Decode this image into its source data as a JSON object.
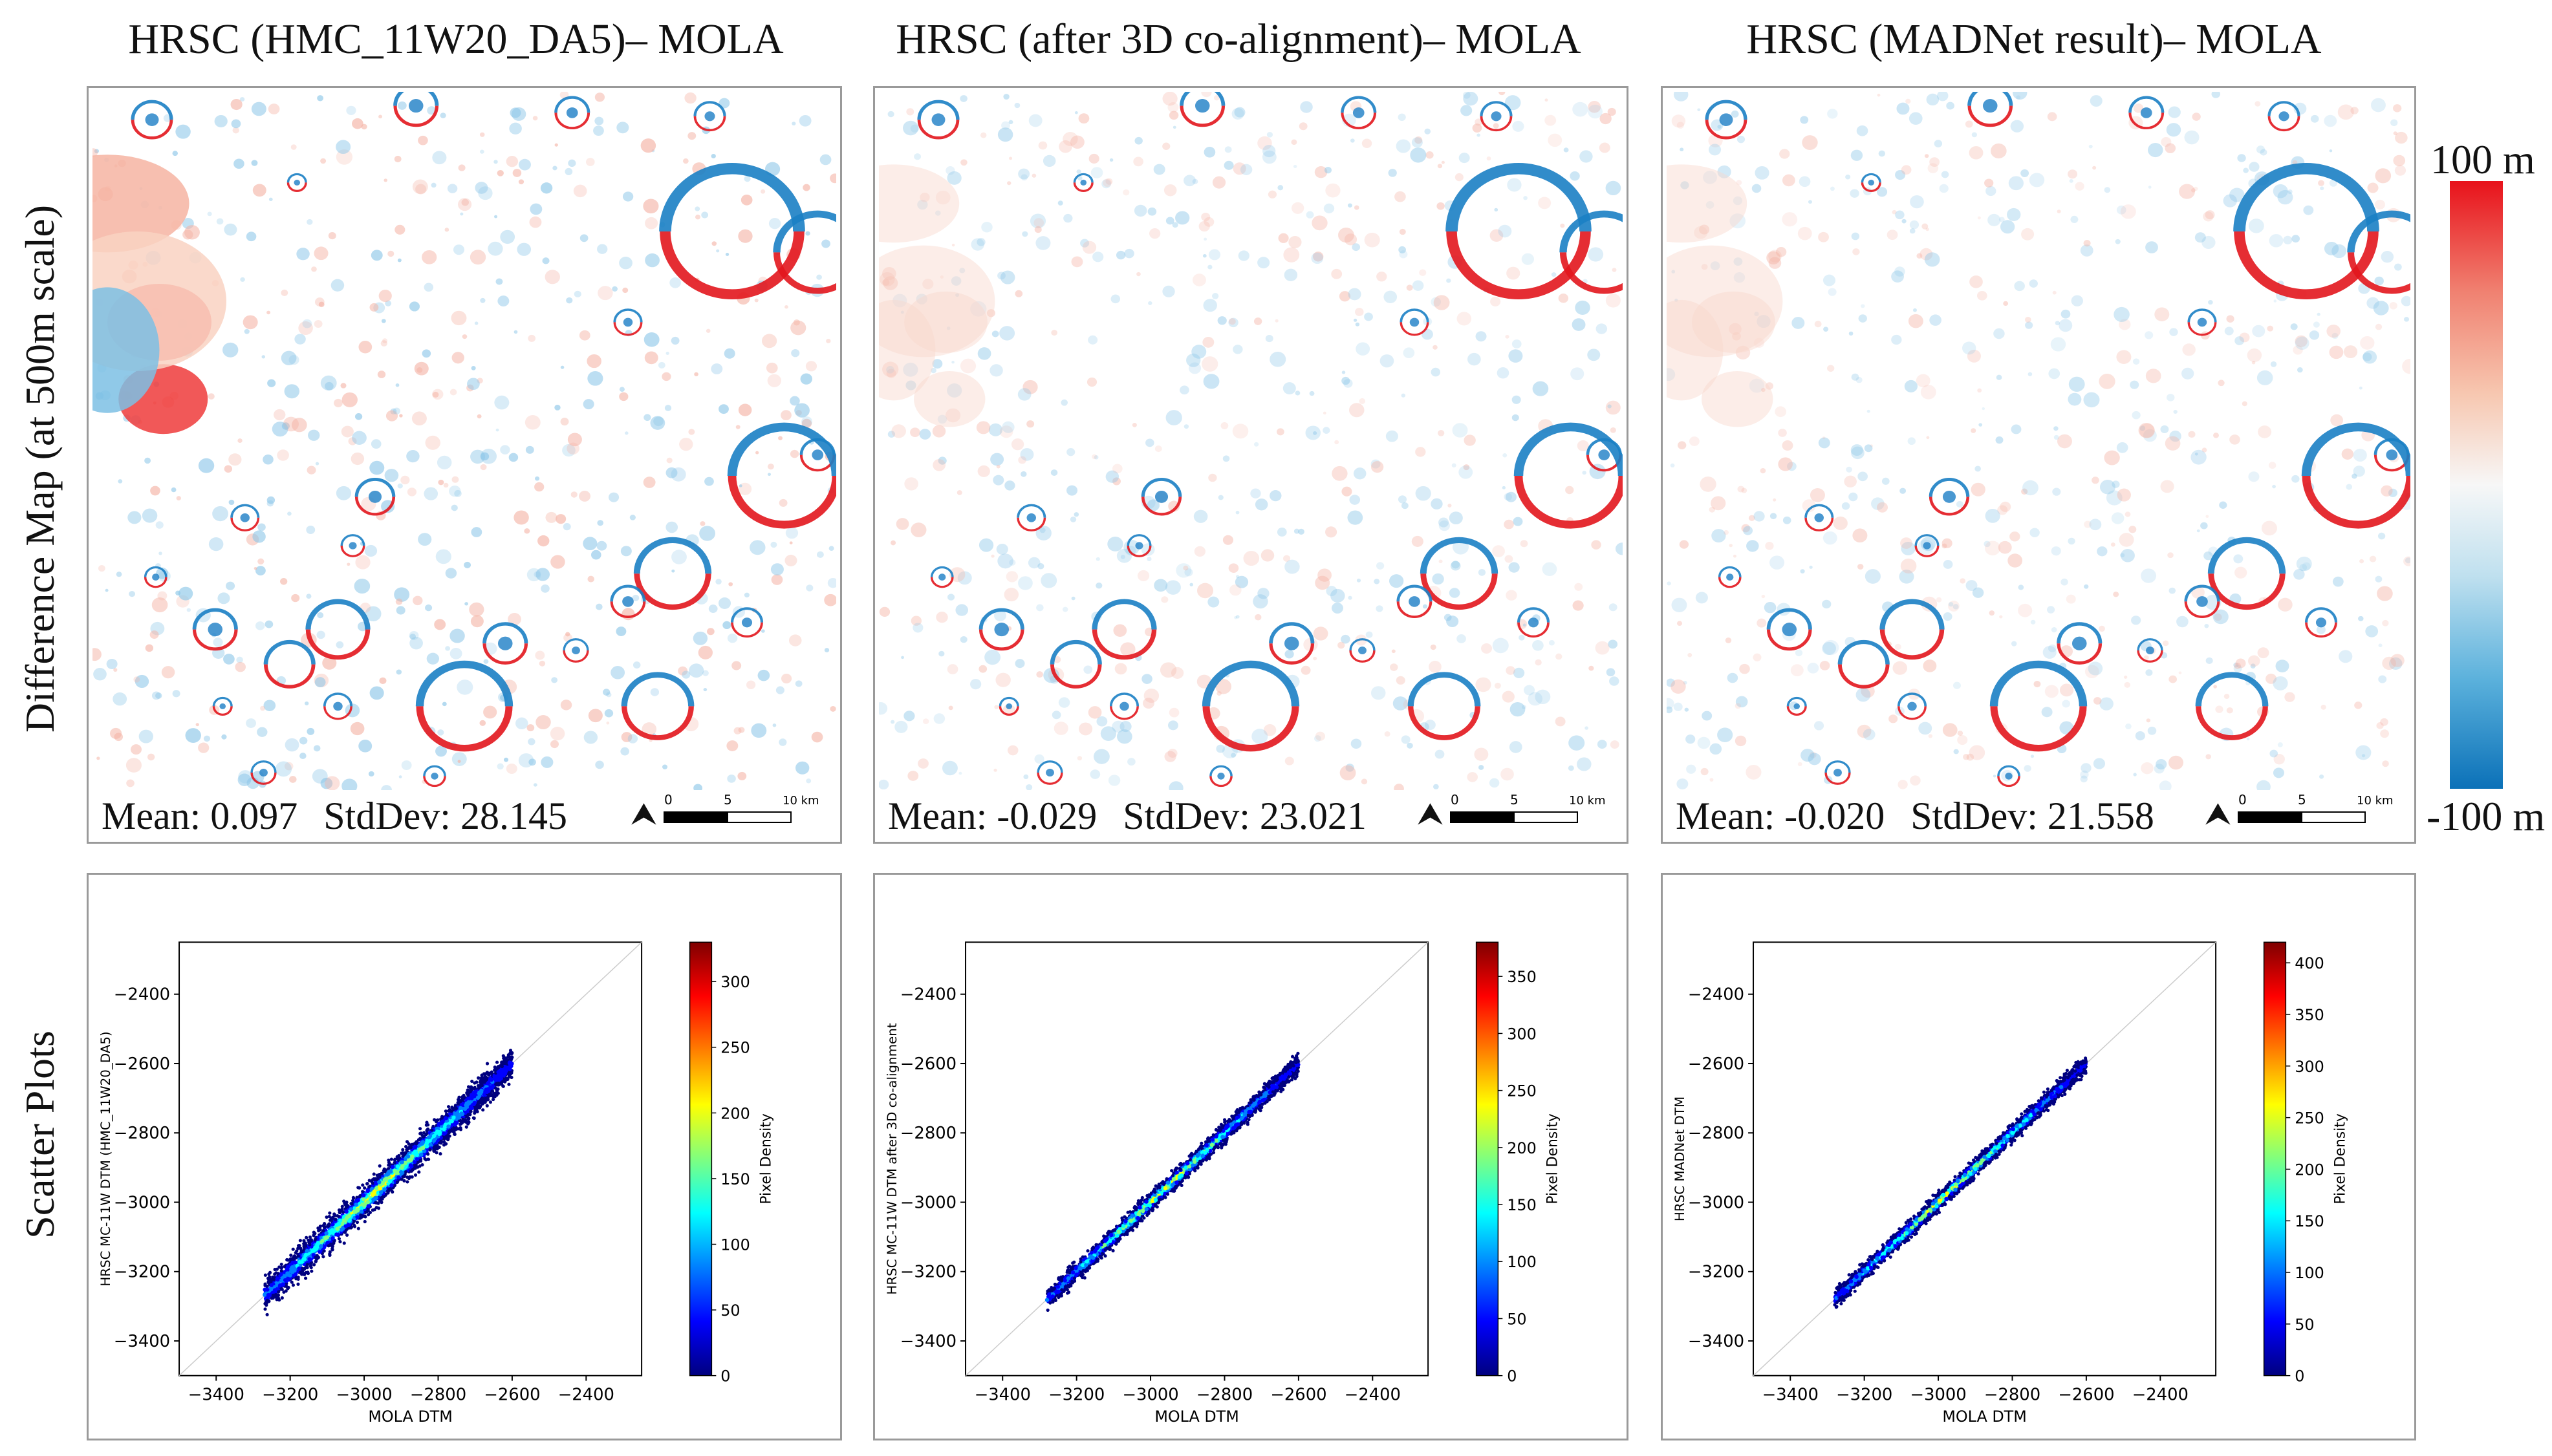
{
  "columns": [
    {
      "title": "HRSC (HMC_11W20_DA5)– MOLA",
      "mean_label": "Mean: 0.097",
      "std_label": "StdDev: 28.145",
      "scatter_ylabel": "HRSC MC-11W DTM (HMC_11W20_DA5)",
      "scatter_xlabel": "MOLA DTM",
      "density_ticks": [
        0,
        50,
        100,
        150,
        200,
        250,
        300
      ],
      "density_max": 330
    },
    {
      "title": "HRSC (after 3D co-alignment)– MOLA",
      "mean_label": "Mean: -0.029",
      "std_label": "StdDev: 23.021",
      "scatter_ylabel": "HRSC MC-11W DTM after 3D co-alignment",
      "scatter_xlabel": "MOLA DTM",
      "density_ticks": [
        0,
        50,
        100,
        150,
        200,
        250,
        300,
        350
      ],
      "density_max": 380
    },
    {
      "title": "HRSC (MADNet result)– MOLA",
      "mean_label": "Mean: -0.020",
      "std_label": "StdDev: 21.558",
      "scatter_ylabel": "HRSC MADNet DTM",
      "scatter_xlabel": "MOLA DTM",
      "density_ticks": [
        0,
        50,
        100,
        150,
        200,
        250,
        300,
        350,
        400
      ],
      "density_max": 420
    }
  ],
  "row_labels": {
    "difference": "Difference Map (at 500m scale)",
    "scatter": "Scatter Plots"
  },
  "colorbar": {
    "max_label": "100 m",
    "min_label": "-100 m"
  },
  "scalebar": {
    "zero": "0",
    "mid": "5",
    "end": "10 km"
  },
  "density_label": "Pixel Density",
  "chart_data": {
    "type": "scatter",
    "description_axes": "MOLA DTM vs HRSC DTM density scatter, three panels",
    "xlim": [
      -3500,
      -2250
    ],
    "ylim": [
      -3500,
      -2250
    ],
    "xticks": [
      -3400,
      -3200,
      -3000,
      -2800,
      -2600,
      -2400
    ],
    "yticks": [
      -3400,
      -3200,
      -3000,
      -2800,
      -2600,
      -2400
    ],
    "xlabel": "MOLA DTM",
    "series": [
      {
        "name": "HRSC (HMC_11W20_DA5)",
        "x_range": [
          -3270,
          -2600
        ],
        "spread": 70,
        "density_max": 330
      },
      {
        "name": "HRSC (after 3D co-alignment)",
        "x_range": [
          -3280,
          -2600
        ],
        "spread": 40,
        "density_max": 380
      },
      {
        "name": "HRSC (MADNet result)",
        "x_range": [
          -3280,
          -2600
        ],
        "spread": 36,
        "density_max": 420
      }
    ]
  }
}
